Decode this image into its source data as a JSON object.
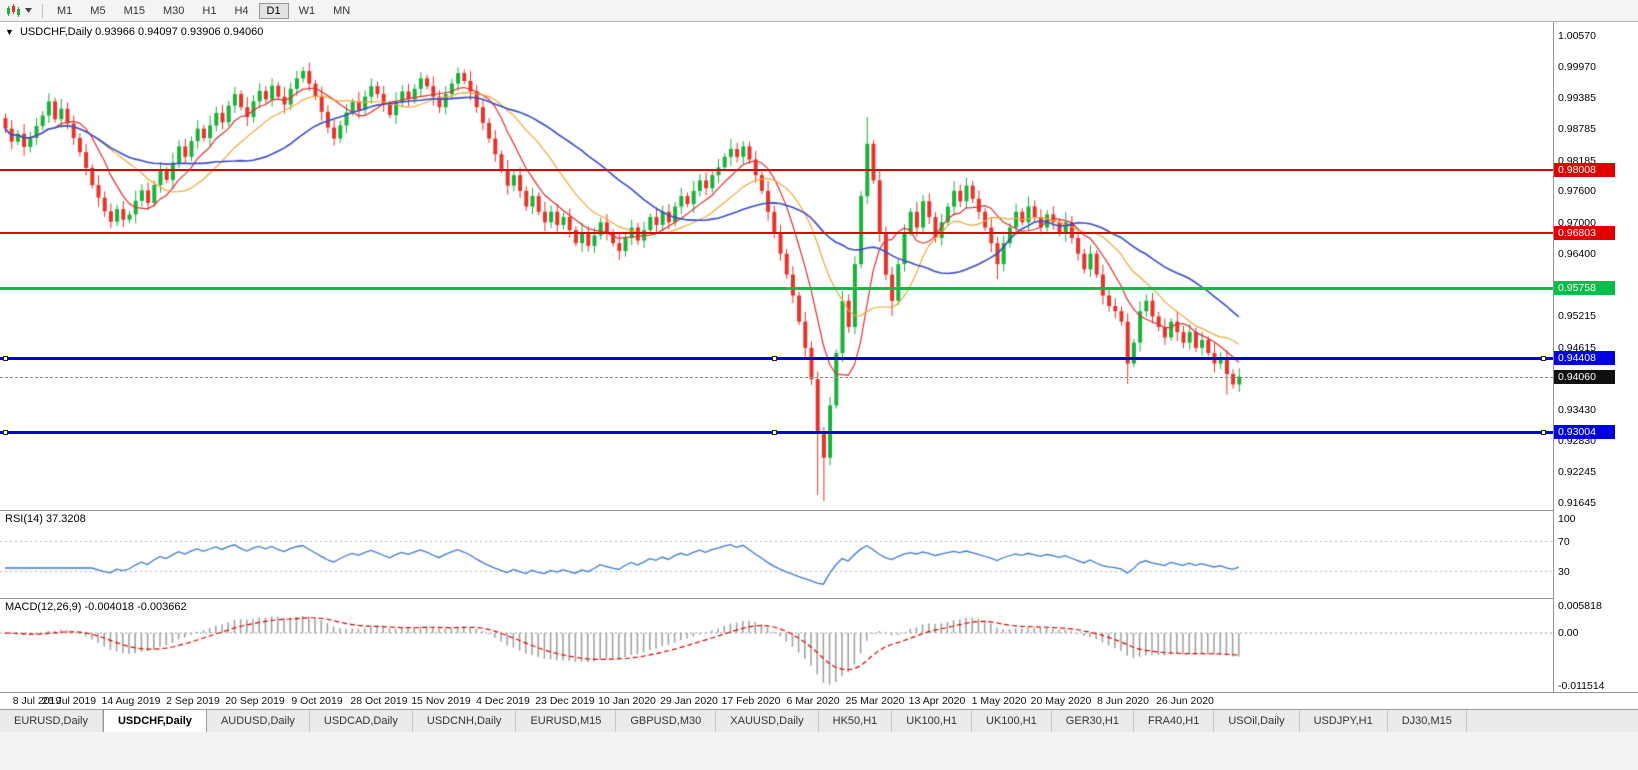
{
  "toolbar": {
    "timeframes": [
      {
        "label": "M1"
      },
      {
        "label": "M5"
      },
      {
        "label": "M15"
      },
      {
        "label": "M30"
      },
      {
        "label": "H1"
      },
      {
        "label": "H4"
      },
      {
        "label": "D1",
        "active": true
      },
      {
        "label": "W1"
      },
      {
        "label": "MN"
      }
    ]
  },
  "chart": {
    "marker": "▼",
    "title_symbol": "USDCHF,Daily",
    "title_ohlc": "0.93966 0.94097 0.93906 0.94060"
  },
  "y_axis": {
    "top_value": 1.0057,
    "bottom_value": 0.91645,
    "labels": [
      "1.00570",
      "0.99970",
      "0.99385",
      "0.98785",
      "0.98185",
      "0.97600",
      "0.97000",
      "0.96400",
      "0.95815",
      "0.95215",
      "0.94615",
      "0.94030",
      "0.93430",
      "0.92830",
      "0.92245",
      "0.91645"
    ]
  },
  "hlines": [
    {
      "value": 0.98008,
      "label": "0.98008",
      "color": "#e00000",
      "width": 2,
      "handles": false
    },
    {
      "value": 0.96803,
      "label": "0.96803",
      "color": "#e00000",
      "width": 2,
      "handles": false
    },
    {
      "value": 0.95758,
      "label": "0.95758",
      "color": "#00c04a",
      "width": 3,
      "handles": false
    },
    {
      "value": 0.94408,
      "label": "0.94408",
      "color": "#0000e0",
      "width": 3,
      "handles": true
    },
    {
      "value": 0.93004,
      "label": "0.93004",
      "color": "#0000e0",
      "width": 3,
      "handles": true
    }
  ],
  "current_price": {
    "value": 0.9406,
    "label": "0.94060",
    "badge_color": "#101010"
  },
  "rsi": {
    "label": "RSI(14)",
    "value_text": "37.3208",
    "period": 14,
    "levels": [
      100,
      70,
      30
    ],
    "line_color": "#3e7bd0"
  },
  "macd": {
    "label": "MACD(12,26,9)",
    "values_text": "-0.004018 -0.003662",
    "fast": 12,
    "slow": 26,
    "signal": 9,
    "scale_labels": [
      {
        "text": "0.005818",
        "value": 0.005818
      },
      {
        "text": "0.00",
        "value": 0
      },
      {
        "text": "-0.011514",
        "value": -0.011514
      }
    ],
    "scale_top": 0.005818,
    "scale_bottom": -0.011514,
    "hist_color": "#9e9e9e",
    "signal_color": "#e00000"
  },
  "x_axis": {
    "labels": [
      "8 Jul 2019",
      "26 Jul 2019",
      "14 Aug 2019",
      "2 Sep 2019",
      "20 Sep 2019",
      "9 Oct 2019",
      "28 Oct 2019",
      "15 Nov 2019",
      "4 Dec 2019",
      "23 Dec 2019",
      "10 Jan 2020",
      "29 Jan 2020",
      "17 Feb 2020",
      "6 Mar 2020",
      "25 Mar 2020",
      "13 Apr 2020",
      "1 May 2020",
      "20 May 2020",
      "8 Jun 2020",
      "26 Jun 2020"
    ],
    "candles_per_label": 10
  },
  "tabs": [
    {
      "label": "EURUSD,Daily"
    },
    {
      "label": "USDCHF,Daily",
      "active": true
    },
    {
      "label": "AUDUSD,Daily"
    },
    {
      "label": "USDCAD,Daily"
    },
    {
      "label": "USDCNH,Daily"
    },
    {
      "label": "EURUSD,M15"
    },
    {
      "label": "GBPUSD,M30"
    },
    {
      "label": "XAUUSD,Daily"
    },
    {
      "label": "HK50,H1"
    },
    {
      "label": "UK100,H1"
    },
    {
      "label": "UK100,H1"
    },
    {
      "label": "GER30,H1"
    },
    {
      "label": "FRA40,H1"
    },
    {
      "label": "USOil,Daily"
    },
    {
      "label": "USDJPY,H1"
    },
    {
      "label": "DJ30,M15"
    }
  ],
  "chart_data": {
    "type": "candlestick",
    "symbol": "USDCHF",
    "timeframe": "Daily",
    "up_color": "#1db03c",
    "down_color": "#e2352b",
    "open_first": 0.99,
    "closes": [
      0.988,
      0.9855,
      0.987,
      0.9845,
      0.9862,
      0.9885,
      0.9905,
      0.9932,
      0.9898,
      0.9918,
      0.989,
      0.9862,
      0.9835,
      0.9805,
      0.9772,
      0.9748,
      0.9722,
      0.9702,
      0.9726,
      0.9706,
      0.9716,
      0.9742,
      0.9762,
      0.9738,
      0.9772,
      0.98,
      0.9782,
      0.9815,
      0.9846,
      0.9826,
      0.9856,
      0.988,
      0.9862,
      0.9886,
      0.991,
      0.9892,
      0.9924,
      0.9946,
      0.9921,
      0.9902,
      0.9932,
      0.9952,
      0.9936,
      0.9962,
      0.9941,
      0.9926,
      0.9956,
      0.9976,
      0.999,
      0.9966,
      0.9941,
      0.9912,
      0.9882,
      0.9861,
      0.9886,
      0.9911,
      0.9931,
      0.9916,
      0.9941,
      0.9961,
      0.9946,
      0.9926,
      0.9906,
      0.9931,
      0.9951,
      0.9936,
      0.9956,
      0.9976,
      0.9961,
      0.9941,
      0.9921,
      0.9946,
      0.9966,
      0.9986,
      0.9971,
      0.9951,
      0.9921,
      0.9891,
      0.9861,
      0.9831,
      0.9801,
      0.9771,
      0.9791,
      0.9761,
      0.9731,
      0.9751,
      0.9721,
      0.9701,
      0.9721,
      0.9696,
      0.9711,
      0.9686,
      0.9661,
      0.9681,
      0.9656,
      0.9676,
      0.9701,
      0.9681,
      0.9661,
      0.9646,
      0.9671,
      0.9691,
      0.9666,
      0.9686,
      0.9711,
      0.9696,
      0.9721,
      0.9701,
      0.9731,
      0.9751,
      0.9736,
      0.9761,
      0.9781,
      0.9766,
      0.9791,
      0.9806,
      0.9826,
      0.9841,
      0.9826,
      0.9846,
      0.9821,
      0.9791,
      0.9761,
      0.9721,
      0.9681,
      0.9641,
      0.9601,
      0.9561,
      0.9511,
      0.9461,
      0.9401,
      0.9301,
      0.9251,
      0.9351,
      0.9451,
      0.9551,
      0.9501,
      0.9621,
      0.9751,
      0.9851,
      0.9781,
      0.9681,
      0.9601,
      0.9551,
      0.9621,
      0.9681,
      0.9721,
      0.9691,
      0.9741,
      0.9711,
      0.9671,
      0.9701,
      0.9731,
      0.9761,
      0.9741,
      0.9771,
      0.9746,
      0.9721,
      0.9691,
      0.9661,
      0.9621,
      0.9661,
      0.9691,
      0.9721,
      0.9701,
      0.9731,
      0.9711,
      0.9691,
      0.9716,
      0.9701,
      0.9681,
      0.9701,
      0.9671,
      0.9641,
      0.9611,
      0.9641,
      0.9601,
      0.9561,
      0.9541,
      0.9531,
      0.9511,
      0.9431,
      0.9471,
      0.9531,
      0.9551,
      0.9521,
      0.9501,
      0.9481,
      0.9511,
      0.9491,
      0.9471,
      0.9491,
      0.9461,
      0.9476,
      0.9451,
      0.9431,
      0.9441,
      0.9411,
      0.9391,
      0.9406
    ],
    "wick_sizes": [
      0.0009,
      0.0016,
      0.0007,
      0.0019,
      0.0012,
      0.0015
    ],
    "wick_overrides": {
      "7": {
        "h": 0.9948
      },
      "17": {
        "l": 0.969
      },
      "37": {
        "h": 0.996
      },
      "43": {
        "h": 0.9976
      },
      "48": {
        "h": 0.9998
      },
      "67": {
        "h": 0.9988
      },
      "73": {
        "h": 0.9997
      },
      "119": {
        "h": 0.9856
      },
      "131": {
        "l": 0.918
      },
      "132": {
        "l": 0.9168
      },
      "139": {
        "h": 0.9902
      },
      "143": {
        "l": 0.9522
      },
      "160": {
        "l": 0.9592
      },
      "181": {
        "l": 0.9392
      },
      "197": {
        "l": 0.9372
      }
    },
    "ma": [
      {
        "period": 8,
        "color": "#e03030",
        "width": 1.2
      },
      {
        "period": 16,
        "color": "#eda83a",
        "width": 1.2
      },
      {
        "period": 30,
        "color": "#3b4bc8",
        "width": 1.6
      }
    ]
  }
}
